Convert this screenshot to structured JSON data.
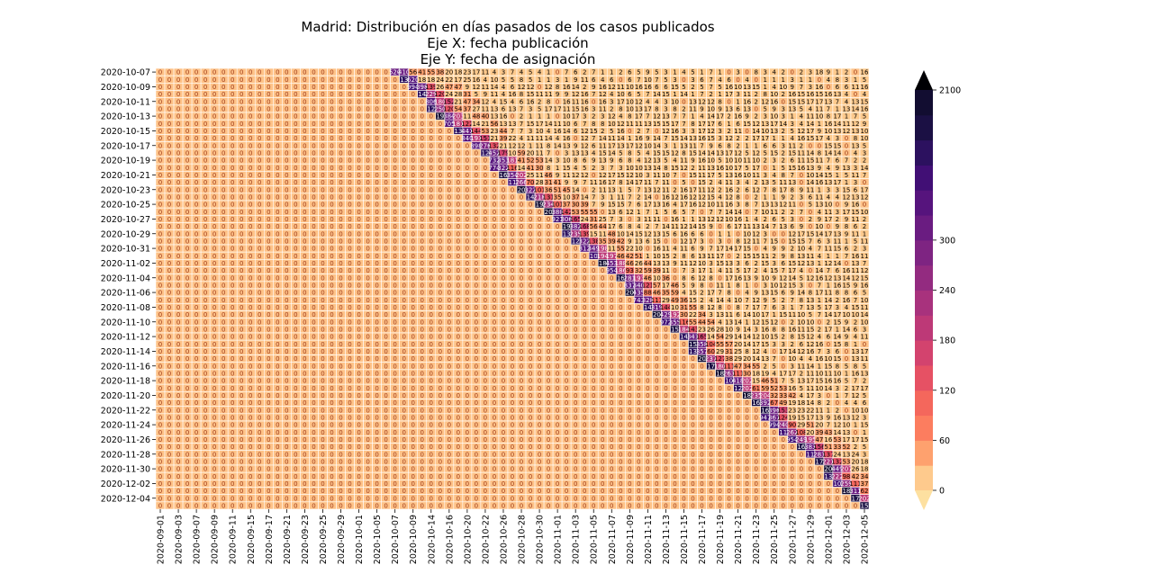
{
  "chart_data": {
    "type": "heatmap",
    "title_lines": [
      "Madrid: Distribución en días pasados de los casos publicados",
      "Eje X: fecha publicación",
      "Eje Y: fecha de asignación"
    ],
    "rows": [
      "2020-10-07",
      "2020-10-08",
      "2020-10-09",
      "2020-10-10",
      "2020-10-11",
      "2020-10-12",
      "2020-10-13",
      "2020-10-14",
      "2020-10-15",
      "2020-10-16",
      "2020-10-17",
      "2020-10-18",
      "2020-10-19",
      "2020-10-20",
      "2020-10-21",
      "2020-10-22",
      "2020-10-23",
      "2020-10-24",
      "2020-10-25",
      "2020-10-26",
      "2020-10-27",
      "2020-10-28",
      "2020-10-29",
      "2020-10-30",
      "2020-10-31",
      "2020-11-01",
      "2020-11-02",
      "2020-11-03",
      "2020-11-04",
      "2020-11-05",
      "2020-11-06",
      "2020-11-07",
      "2020-11-08",
      "2020-11-09",
      "2020-11-10",
      "2020-11-11",
      "2020-11-12",
      "2020-11-13",
      "2020-11-14",
      "2020-11-15",
      "2020-11-16",
      "2020-11-17",
      "2020-11-18",
      "2020-11-19",
      "2020-11-20",
      "2020-11-21",
      "2020-11-22",
      "2020-11-23",
      "2020-11-24",
      "2020-11-25",
      "2020-11-26",
      "2020-11-27",
      "2020-11-28",
      "2020-11-29",
      "2020-11-30",
      "2020-12-01",
      "2020-12-02",
      "2020-12-03",
      "2020-12-04",
      "2020-12-05"
    ],
    "ytick_labels": [
      "2020-10-07",
      "2020-10-09",
      "2020-10-11",
      "2020-10-13",
      "2020-10-15",
      "2020-10-17",
      "2020-10-19",
      "2020-10-21",
      "2020-10-23",
      "2020-10-25",
      "2020-10-27",
      "2020-10-29",
      "2020-10-31",
      "2020-11-02",
      "2020-11-04",
      "2020-11-06",
      "2020-11-08",
      "2020-11-10",
      "2020-11-12",
      "2020-11-14",
      "2020-11-16",
      "2020-11-18",
      "2020-11-20",
      "2020-11-22",
      "2020-11-24",
      "2020-11-26",
      "2020-11-28",
      "2020-11-30",
      "2020-12-02",
      "2020-12-04"
    ],
    "xtick_labels": [
      "2020-09-01",
      "2020-09-03",
      "2020-09-07",
      "2020-09-09",
      "2020-09-11",
      "2020-09-15",
      "2020-09-17",
      "2020-09-21",
      "2020-09-23",
      "2020-09-25",
      "2020-09-29",
      "2020-10-01",
      "2020-10-05",
      "2020-10-07",
      "2020-10-09",
      "2020-10-14",
      "2020-10-16",
      "2020-10-20",
      "2020-10-22",
      "2020-10-26",
      "2020-10-28",
      "2020-10-30",
      "2020-11-01",
      "2020-11-03",
      "2020-11-05",
      "2020-11-07",
      "2020-11-09",
      "2020-11-11",
      "2020-11-13",
      "2020-11-15",
      "2020-11-17",
      "2020-11-19",
      "2020-11-21",
      "2020-11-23",
      "2020-11-25",
      "2020-11-27",
      "2020-11-29",
      "2020-12-01",
      "2020-12-03",
      "2020-12-05"
    ],
    "n_columns": 79,
    "diagonal_start_column": 26,
    "diagonal_end_column": 78,
    "sample_values": {
      "2020-10-07": [
        520,
        410,
        56,
        41,
        55,
        38,
        20,
        18,
        23,
        17,
        11,
        4,
        3,
        7,
        4,
        5,
        4,
        1,
        0,
        7,
        6,
        2,
        7,
        1,
        1,
        2,
        6,
        5,
        9,
        5,
        3,
        1,
        4,
        5,
        1,
        7,
        1,
        0,
        3,
        0,
        8,
        3,
        4,
        2,
        0,
        2,
        3,
        18,
        9,
        1,
        2
      ],
      "2020-10-08": [
        1350,
        620,
        18,
        18,
        24,
        22,
        17,
        25,
        16,
        4,
        10,
        5,
        5,
        8,
        5,
        1,
        1,
        3,
        1,
        9,
        11,
        6,
        4,
        6,
        0,
        6,
        7,
        10,
        7,
        5,
        3,
        0,
        3,
        6,
        7,
        4,
        6,
        0,
        4,
        0,
        1,
        1,
        1,
        3,
        1,
        1,
        0,
        4,
        8,
        3,
        1
      ]
    },
    "colorbar": {
      "ticks": [
        0,
        60,
        120,
        180,
        240,
        300,
        2100
      ],
      "boundaries": [
        0,
        30,
        60,
        90,
        120,
        150,
        180,
        210,
        240,
        270,
        300,
        600,
        900,
        1200,
        1500,
        1800,
        2100
      ],
      "colors": [
        "#feca8d",
        "#fea16e",
        "#fc7d5f",
        "#f4675c",
        "#e65164",
        "#d3436e",
        "#bd3977",
        "#a8327d",
        "#932b80",
        "#7e2482",
        "#6a1c81",
        "#56147d",
        "#410f75",
        "#2c115f",
        "#1b1044",
        "#120d31"
      ],
      "under_color": "#fde0a0",
      "over_color": "#000004",
      "extend": "both"
    },
    "zero_cell_color": "#fec287",
    "zero_text_color": "#9e3a1a",
    "text_dark": "#000000",
    "text_light": "#ffffff"
  }
}
